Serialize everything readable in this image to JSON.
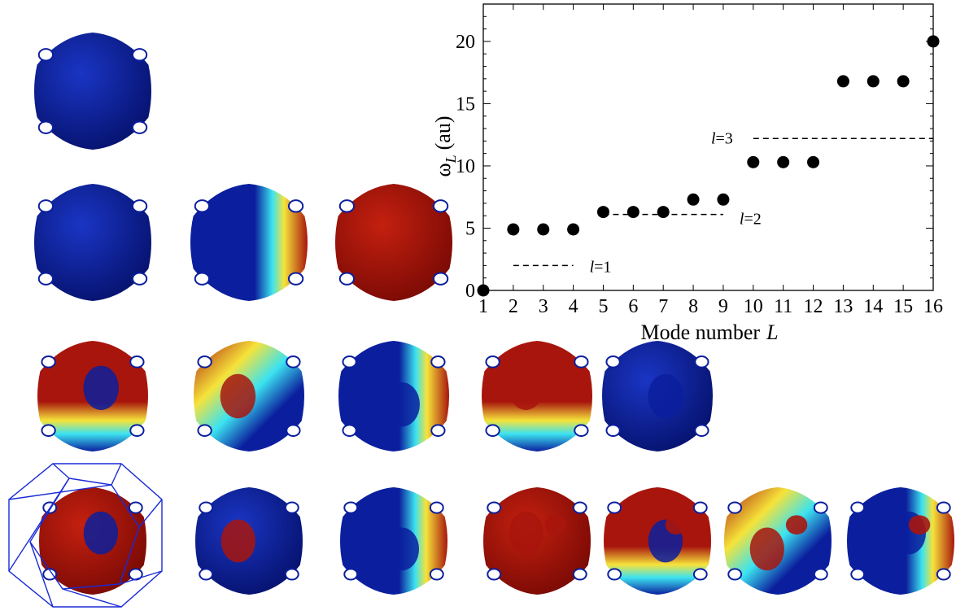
{
  "mode_shapes": {
    "rows": [
      {
        "count": 1
      },
      {
        "count": 3
      },
      {
        "count": 5
      },
      {
        "count": 7
      }
    ],
    "palette": {
      "blue": "#0b1f9e",
      "cyan": "#3ce3f0",
      "yellow": "#f6e33a",
      "red": "#a8150d"
    },
    "cell_outline_color": "#1a2bd6"
  },
  "chart_data": {
    "type": "scatter",
    "xlabel_main": "Mode number",
    "xlabel_var": "L",
    "ylabel_main": "ω",
    "ylabel_sub": "L",
    "ylabel_unit": "(au)",
    "xlim": [
      1,
      16
    ],
    "ylim": [
      0,
      23
    ],
    "xticks": [
      1,
      2,
      3,
      4,
      5,
      6,
      7,
      8,
      9,
      10,
      11,
      12,
      13,
      14,
      15,
      16
    ],
    "yticks": [
      0,
      5,
      10,
      15,
      20
    ],
    "x": [
      1,
      2,
      3,
      4,
      5,
      6,
      7,
      8,
      9,
      10,
      11,
      12,
      13,
      14,
      15,
      16
    ],
    "y": [
      0,
      4.9,
      4.9,
      4.9,
      6.3,
      6.3,
      6.3,
      7.3,
      7.3,
      10.3,
      10.3,
      10.3,
      16.8,
      16.8,
      16.8,
      20
    ],
    "reference_levels": [
      {
        "label_var": "l",
        "label_rest": "=1",
        "y": 2.0,
        "x_range": [
          2,
          4
        ]
      },
      {
        "label_var": "l",
        "label_rest": "=2",
        "y": 6.1,
        "x_range": [
          5,
          9
        ]
      },
      {
        "label_var": "l",
        "label_rest": "=3",
        "y": 12.2,
        "x_range": [
          10,
          16
        ]
      }
    ],
    "marker_color": "#000000",
    "grid": false
  }
}
